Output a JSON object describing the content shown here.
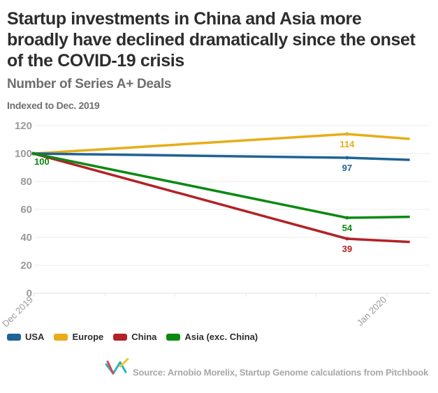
{
  "chart_data": {
    "type": "line",
    "title": "Startup investments in China and Asia more broadly have declined dramatically since the onset of the COVID-19 crisis",
    "subtitle": "Number of Series A+ Deals",
    "ylabel": "Indexed to Dec. 2019",
    "xlabel": "",
    "ylim": [
      0,
      120
    ],
    "yticks": [
      0,
      20,
      40,
      60,
      80,
      100,
      120
    ],
    "xaxis_unit": "days since Dec 1, 2019",
    "xlim": [
      0,
      34.8
    ],
    "xtick_labels": [
      {
        "x": 0,
        "label": "Dec 2019"
      },
      {
        "x": 31,
        "label": "Jan 2020"
      }
    ],
    "minor_ticks_x": [
      6.3,
      12.4,
      18.6,
      24.8
    ],
    "grid": true,
    "legend_position": "bottom-left",
    "x": [
      0,
      27.5,
      33
    ],
    "series": [
      {
        "name": "USA",
        "color": "#1f6396",
        "values": [
          100,
          97,
          95.5
        ],
        "labels": [
          null,
          "97",
          null
        ]
      },
      {
        "name": "Europe",
        "color": "#e8ad17",
        "values": [
          100,
          114,
          110.5
        ],
        "labels": [
          null,
          "114",
          null
        ]
      },
      {
        "name": "China",
        "color": "#b22226",
        "values": [
          100,
          39,
          36.7
        ],
        "labels": [
          null,
          "39",
          null
        ]
      },
      {
        "name": "Asia (exc. China)",
        "color": "#0a8a12",
        "values": [
          100,
          54,
          54.7
        ],
        "labels": [
          "100",
          "54",
          null
        ]
      }
    ]
  },
  "legend": [
    {
      "label": "USA",
      "color": "#1f6396"
    },
    {
      "label": "Europe",
      "color": "#e8ad17"
    },
    {
      "label": "China",
      "color": "#b22226"
    },
    {
      "label": "Asia (exc. China)",
      "color": "#0a8a12"
    }
  ],
  "source": {
    "text": "Source: Arnobio Morelix, Startup Genome calculations from Pitchbook",
    "logo_icon": "startup-genome-logo-icon"
  }
}
